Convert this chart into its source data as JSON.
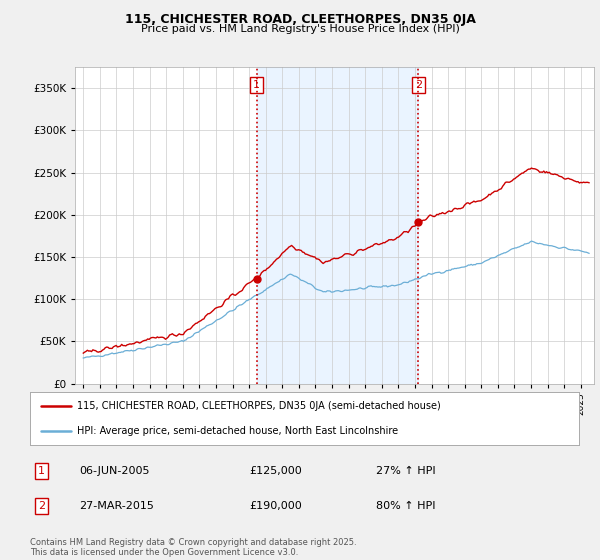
{
  "title1": "115, CHICHESTER ROAD, CLEETHORPES, DN35 0JA",
  "title2": "Price paid vs. HM Land Registry's House Price Index (HPI)",
  "legend1": "115, CHICHESTER ROAD, CLEETHORPES, DN35 0JA (semi-detached house)",
  "legend2": "HPI: Average price, semi-detached house, North East Lincolnshire",
  "sale1_date": "06-JUN-2005",
  "sale1_price": 125000,
  "sale1_pct": "27% ↑ HPI",
  "sale2_date": "27-MAR-2015",
  "sale2_price": 190000,
  "sale2_pct": "80% ↑ HPI",
  "footnote": "Contains HM Land Registry data © Crown copyright and database right 2025.\nThis data is licensed under the Open Government Licence v3.0.",
  "hpi_color": "#6baed6",
  "price_color": "#cc0000",
  "vline_color": "#cc0000",
  "shade_color": "#ddeeff",
  "background": "#f0f0f0",
  "plot_bg": "#ffffff",
  "ylim": [
    0,
    375000
  ],
  "yticks": [
    0,
    50000,
    100000,
    150000,
    200000,
    250000,
    300000,
    350000
  ],
  "t1": 2005.45,
  "t2": 2015.21,
  "p1": 125000,
  "p2": 190000
}
